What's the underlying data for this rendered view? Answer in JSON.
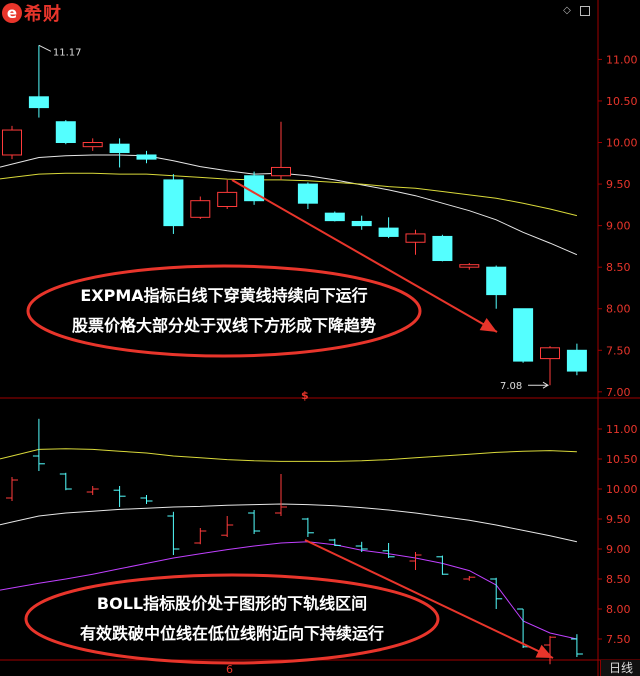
{
  "logo": {
    "text": "希财",
    "mark": "e"
  },
  "window_controls": [
    "diamond-icon",
    "restore-icon"
  ],
  "period_label": "日线",
  "markers": {
    "top_divider_mark": "$",
    "bottom_mark": "6"
  },
  "colors": {
    "up": "#ff3b3b",
    "down": "#54ffff",
    "white_line": "#e6e6e6",
    "yellow_line": "#d9d93a",
    "purple_line": "#c040ff",
    "axis": "#a00000",
    "annotation": "#e8352b",
    "label_text": "#ffffff"
  },
  "annotations": {
    "top": [
      "EXPMA指标白线下穿黄线持续向下运行",
      "股票价格大部分处于双线下方形成下降趋势"
    ],
    "bottom": [
      "BOLL指标股价处于图形的下轨线区间",
      "有效跌破中位线在低位线附近向下持续运行"
    ]
  },
  "chart_data": [
    {
      "type": "candlestick",
      "indicator": "EXPMA",
      "ylim": [
        6.95,
        11.45
      ],
      "y_ticks": [
        "11.00",
        "10.50",
        "10.00",
        "9.50",
        "9.00",
        "8.50",
        "8.00",
        "7.50",
        "7.00"
      ],
      "high_label": "11.17",
      "low_label": "7.08",
      "candles": [
        {
          "o": 9.85,
          "h": 10.2,
          "l": 9.8,
          "c": 10.15
        },
        {
          "o": 10.55,
          "h": 11.17,
          "l": 10.3,
          "c": 10.42
        },
        {
          "o": 10.25,
          "h": 10.27,
          "l": 9.98,
          "c": 10.0
        },
        {
          "o": 9.95,
          "h": 10.05,
          "l": 9.9,
          "c": 10.0
        },
        {
          "o": 9.98,
          "h": 10.05,
          "l": 9.7,
          "c": 9.88
        },
        {
          "o": 9.85,
          "h": 9.9,
          "l": 9.75,
          "c": 9.8
        },
        {
          "o": 9.55,
          "h": 9.62,
          "l": 8.9,
          "c": 9.0
        },
        {
          "o": 9.1,
          "h": 9.35,
          "l": 9.08,
          "c": 9.3
        },
        {
          "o": 9.23,
          "h": 9.55,
          "l": 9.2,
          "c": 9.4
        },
        {
          "o": 9.6,
          "h": 9.65,
          "l": 9.25,
          "c": 9.3
        },
        {
          "o": 9.6,
          "h": 10.25,
          "l": 9.55,
          "c": 9.7
        },
        {
          "o": 9.5,
          "h": 9.52,
          "l": 9.2,
          "c": 9.27
        },
        {
          "o": 9.15,
          "h": 9.17,
          "l": 9.05,
          "c": 9.06
        },
        {
          "o": 9.05,
          "h": 9.12,
          "l": 8.95,
          "c": 9.0
        },
        {
          "o": 8.97,
          "h": 9.1,
          "l": 8.85,
          "c": 8.87
        },
        {
          "o": 8.8,
          "h": 8.95,
          "l": 8.65,
          "c": 8.9
        },
        {
          "o": 8.87,
          "h": 8.89,
          "l": 8.57,
          "c": 8.58
        },
        {
          "o": 8.5,
          "h": 8.55,
          "l": 8.47,
          "c": 8.53
        },
        {
          "o": 8.5,
          "h": 8.52,
          "l": 8.0,
          "c": 8.17
        },
        {
          "o": 8.0,
          "h": 8.0,
          "l": 7.35,
          "c": 7.37
        },
        {
          "o": 7.4,
          "h": 7.55,
          "l": 7.08,
          "c": 7.53
        },
        {
          "o": 7.5,
          "h": 7.58,
          "l": 7.2,
          "c": 7.25
        }
      ],
      "series": [
        {
          "values": [
            9.74,
            9.82,
            9.84,
            9.85,
            9.85,
            9.84,
            9.78,
            9.71,
            9.66,
            9.62,
            9.63,
            9.6,
            9.55,
            9.49,
            9.43,
            9.36,
            9.27,
            9.18,
            9.07,
            8.92,
            8.79,
            8.65
          ],
          "color": "#e6e6e6"
        },
        {
          "values": [
            9.58,
            9.62,
            9.63,
            9.63,
            9.62,
            9.62,
            9.6,
            9.58,
            9.56,
            9.55,
            9.55,
            9.54,
            9.52,
            9.5,
            9.47,
            9.45,
            9.41,
            9.37,
            9.33,
            9.27,
            9.2,
            9.12
          ],
          "color": "#d9d93a"
        }
      ]
    },
    {
      "type": "ohlc",
      "indicator": "BOLL",
      "ylim": [
        7.15,
        11.45
      ],
      "y_ticks": [
        "11.00",
        "10.50",
        "10.00",
        "9.50",
        "9.00",
        "8.50",
        "8.00",
        "7.50"
      ],
      "series": [
        {
          "values": [
            10.55,
            10.66,
            10.67,
            10.66,
            10.63,
            10.6,
            10.55,
            10.52,
            10.49,
            10.47,
            10.46,
            10.46,
            10.46,
            10.47,
            10.49,
            10.52,
            10.55,
            10.58,
            10.61,
            10.63,
            10.64,
            10.62
          ],
          "color": "#d9d93a"
        },
        {
          "values": [
            9.45,
            9.55,
            9.6,
            9.63,
            9.66,
            9.68,
            9.7,
            9.71,
            9.73,
            9.74,
            9.75,
            9.74,
            9.72,
            9.69,
            9.65,
            9.6,
            9.54,
            9.48,
            9.4,
            9.31,
            9.22,
            9.12
          ],
          "color": "#e6e6e6"
        },
        {
          "values": [
            8.35,
            8.43,
            8.5,
            8.58,
            8.67,
            8.76,
            8.85,
            8.92,
            8.99,
            9.05,
            9.1,
            9.12,
            9.07,
            8.98,
            8.92,
            8.85,
            8.76,
            8.64,
            8.4,
            7.8,
            7.6,
            7.5
          ],
          "color": "#c040ff"
        }
      ]
    }
  ]
}
